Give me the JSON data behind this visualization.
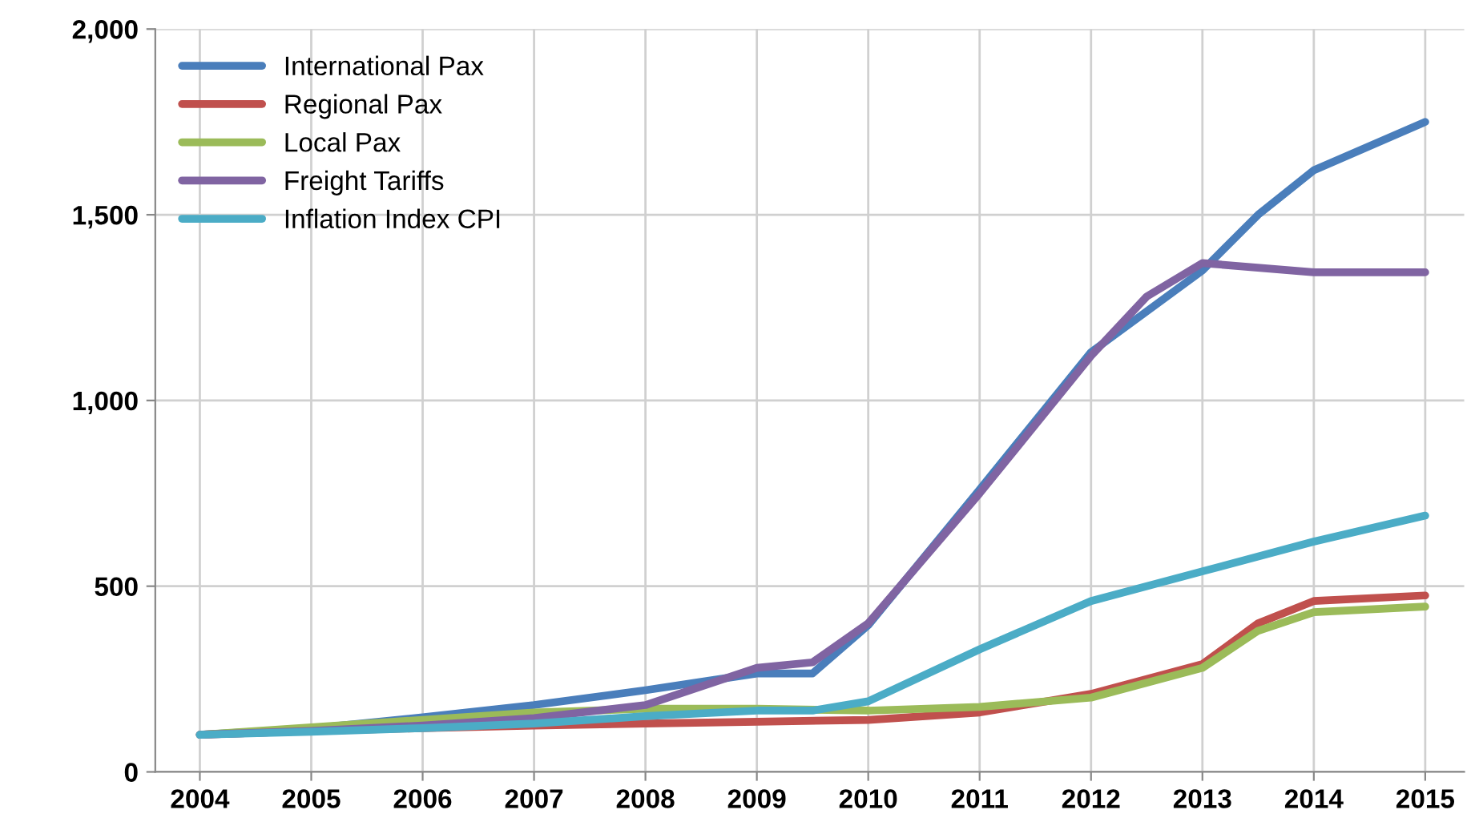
{
  "chart_data": {
    "type": "line",
    "xlim": [
      2003.6,
      2015.35
    ],
    "xticks": [
      2004,
      2005,
      2006,
      2007,
      2008,
      2009,
      2010,
      2011,
      2012,
      2013,
      2014,
      2015
    ],
    "ylim": [
      0,
      2000
    ],
    "yticks": [
      0,
      500,
      {
        "value": 1000,
        "label": "1,000"
      },
      {
        "value": 1500,
        "label": "1,500"
      },
      {
        "value": 2000,
        "label": "2,000"
      }
    ],
    "grid": true,
    "legend": "top left",
    "marker": "none",
    "line_style": "solid",
    "series": [
      {
        "name": "International Pax",
        "color": "#4a7ebb",
        "x": [
          2004,
          2005,
          2006,
          2007,
          2008,
          2009,
          2009.5,
          2010,
          2011,
          2012,
          2013,
          2013.5,
          2014,
          2015
        ],
        "values": [
          100,
          117,
          147,
          180,
          220,
          265,
          265,
          395,
          760,
          1130,
          1350,
          1500,
          1620,
          1750
        ]
      },
      {
        "name": "Regional Pax",
        "color": "#c0504d",
        "x": [
          2004,
          2005,
          2006,
          2007,
          2008,
          2009,
          2010,
          2011,
          2012,
          2013,
          2013.5,
          2014,
          2015
        ],
        "values": [
          100,
          110,
          118,
          125,
          130,
          135,
          140,
          160,
          210,
          290,
          400,
          460,
          475
        ]
      },
      {
        "name": "Local Pax",
        "color": "#9bbb59",
        "x": [
          2004,
          2005,
          2006,
          2007,
          2008,
          2009,
          2010,
          2011,
          2012,
          2013,
          2013.5,
          2014,
          2015
        ],
        "values": [
          100,
          120,
          140,
          160,
          170,
          170,
          165,
          175,
          200,
          280,
          380,
          430,
          445
        ]
      },
      {
        "name": "Freight Tariffs",
        "color": "#8064a2",
        "x": [
          2004,
          2005,
          2006,
          2007,
          2008,
          2009,
          2009.5,
          2010,
          2011,
          2012,
          2012.5,
          2013,
          2014,
          2015
        ],
        "values": [
          100,
          110,
          125,
          145,
          180,
          280,
          295,
          400,
          750,
          1120,
          1280,
          1370,
          1345,
          1345
        ]
      },
      {
        "name": "Inflation Index CPI",
        "color": "#4bacc6",
        "x": [
          2004,
          2005,
          2006,
          2007,
          2008,
          2009,
          2009.5,
          2010,
          2011,
          2012,
          2013,
          2014,
          2015
        ],
        "values": [
          100,
          108,
          118,
          130,
          150,
          165,
          165,
          190,
          330,
          460,
          540,
          620,
          690
        ]
      }
    ]
  }
}
